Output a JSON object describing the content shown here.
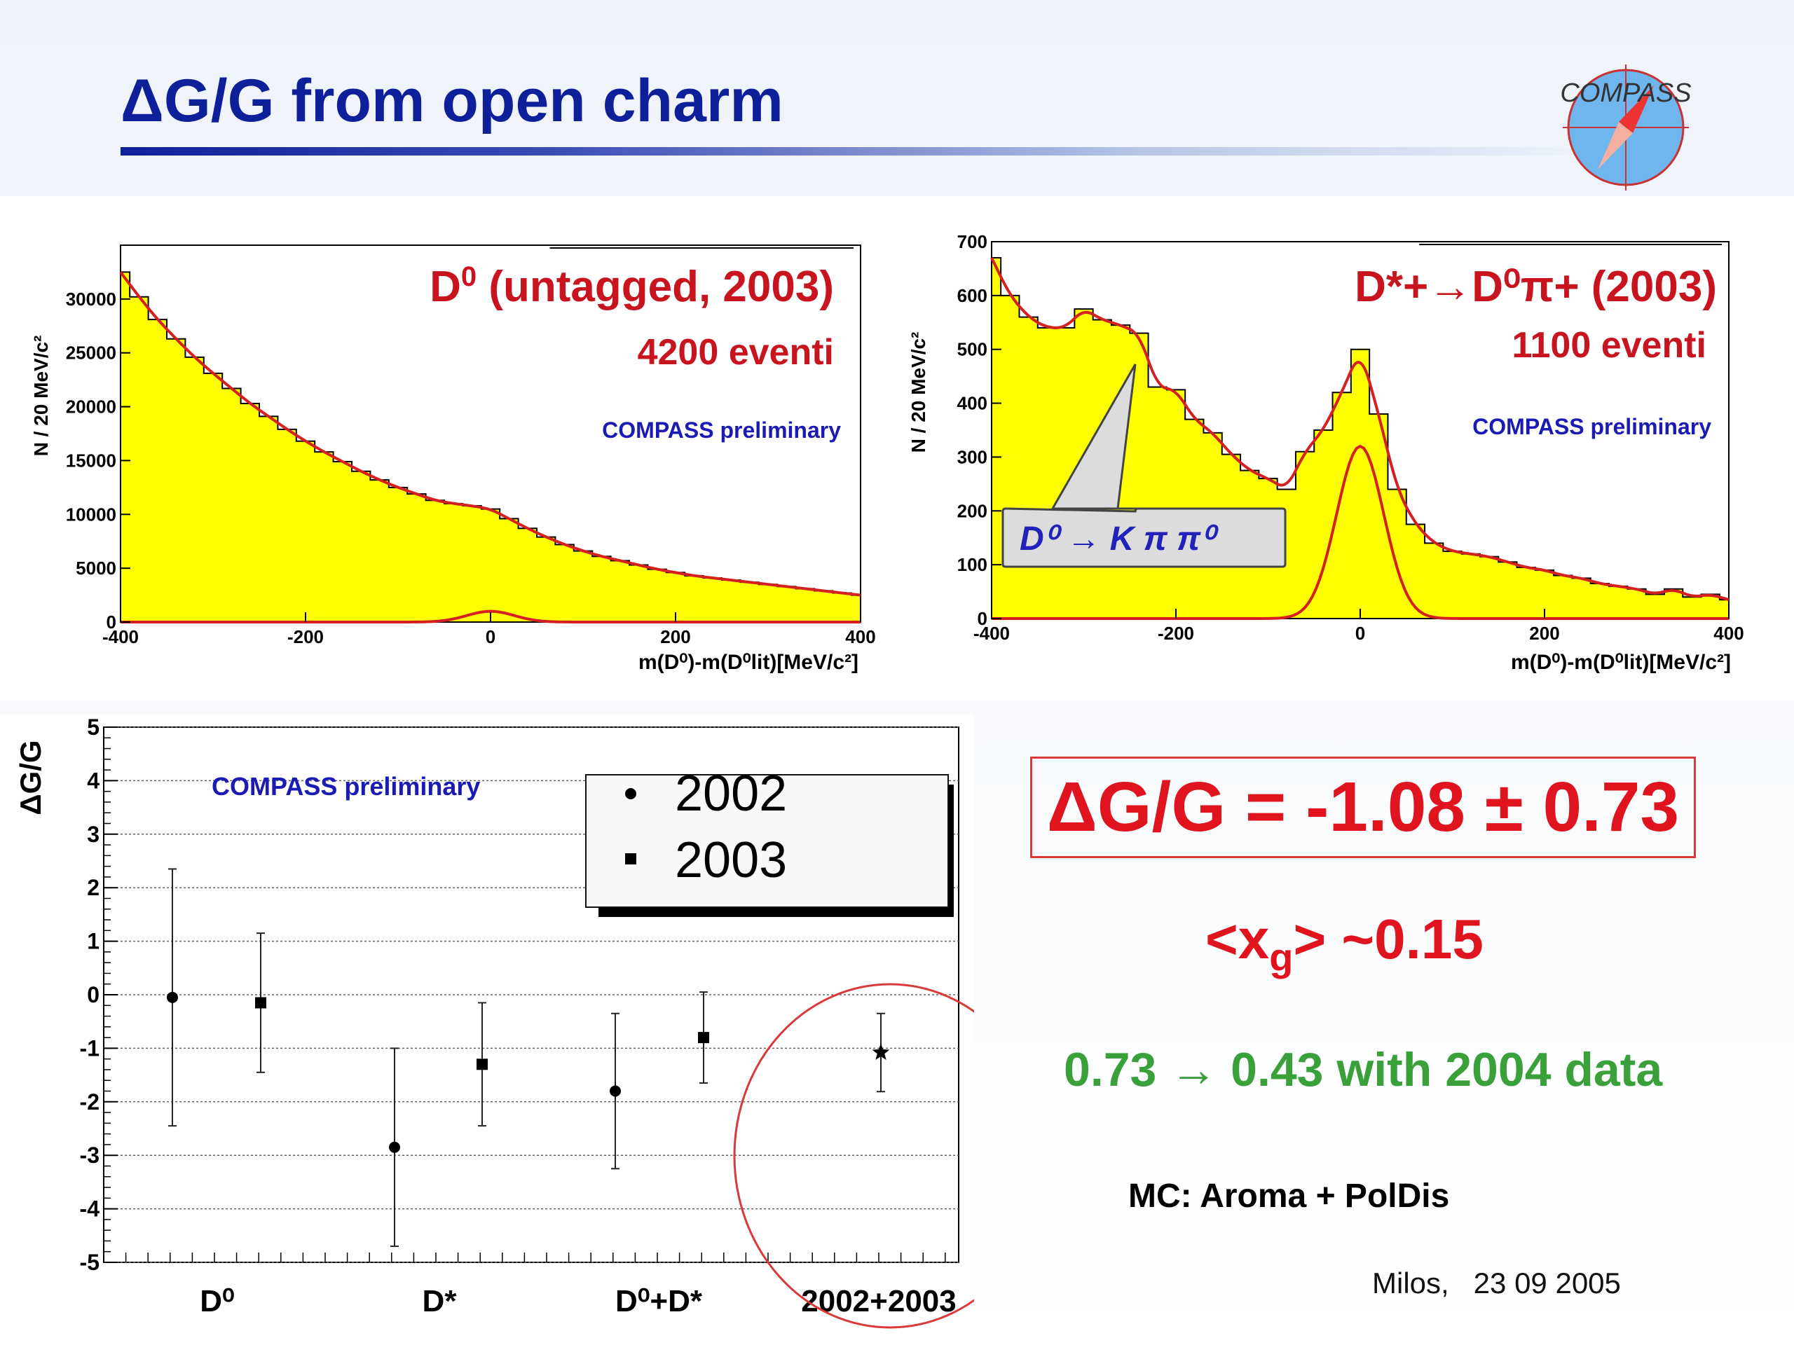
{
  "title": "ΔG/G from open charm",
  "logo": {
    "text": "COMPASS",
    "icon": "compass-logo-icon"
  },
  "panel_d0": {
    "label_main": "D",
    "label_sup": "0",
    "label_rest": " (untagged, 2003)",
    "events": "4200 eventi",
    "preliminary": "COMPASS preliminary",
    "ylabel": "N / 20 MeV/c²",
    "xlabel": "m(D⁰)-m(D⁰lit)[MeV/c²]"
  },
  "panel_dstar": {
    "label": "D*+→D⁰π+ (2003)",
    "events": "1100 eventi",
    "preliminary": "COMPASS preliminary",
    "callout": "D⁰ → K π π⁰",
    "ylabel": "N / 20 MeV/c²",
    "xlabel": "m(D⁰)-m(D⁰lit)[MeV/c²]"
  },
  "panel_dg": {
    "ylabel": "ΔG/G",
    "preliminary": "COMPASS preliminary",
    "legend": [
      {
        "label": "2002",
        "marker": "circle"
      },
      {
        "label": "2003",
        "marker": "square"
      }
    ]
  },
  "result": {
    "main": "ΔG/G = -1.08 ± 0.73",
    "xg_pre": "<x",
    "xg_sub": "g",
    "xg_post": "> ~0.15",
    "improvement": "0.73 → 0.43 with 2004 data",
    "mc": "MC: Aroma + PolDis"
  },
  "footer": "Milos,   23 09 2005",
  "colors": {
    "title": "#0e1f9a",
    "fill": "#ffff00",
    "fit": "#d42020",
    "result": "#e0141e",
    "green": "#3aa03a",
    "preliminary": "#1a1ab4"
  },
  "chart_data": [
    {
      "type": "area",
      "name": "d0-untagged-2003",
      "x": [
        -400,
        -380,
        -360,
        -340,
        -320,
        -300,
        -280,
        -260,
        -240,
        -220,
        -200,
        -180,
        -160,
        -140,
        -120,
        -100,
        -80,
        -60,
        -40,
        -20,
        0,
        20,
        40,
        60,
        80,
        100,
        120,
        140,
        160,
        180,
        200,
        220,
        240,
        260,
        280,
        300,
        320,
        340,
        360,
        380,
        400
      ],
      "values": [
        32500,
        30200,
        28100,
        26300,
        24600,
        23100,
        21700,
        20300,
        19100,
        17900,
        16800,
        15800,
        14900,
        14000,
        13200,
        12500,
        11900,
        11300,
        11000,
        10800,
        10500,
        9600,
        8700,
        7900,
        7200,
        6600,
        6100,
        5700,
        5300,
        4900,
        4600,
        4300,
        4100,
        3900,
        3700,
        3500,
        3300,
        3100,
        2900,
        2700,
        2500
      ],
      "signal_peak": 1000,
      "xlim": [
        -400,
        400
      ],
      "ylim": [
        0,
        35000
      ],
      "yticks": [
        0,
        5000,
        10000,
        15000,
        20000,
        25000,
        30000
      ],
      "xticks": [
        -400,
        -200,
        0,
        200,
        400
      ]
    },
    {
      "type": "area",
      "name": "dstar-2003",
      "x": [
        -400,
        -380,
        -360,
        -340,
        -320,
        -300,
        -280,
        -260,
        -240,
        -220,
        -200,
        -180,
        -160,
        -140,
        -120,
        -100,
        -80,
        -60,
        -40,
        -20,
        0,
        20,
        40,
        60,
        80,
        100,
        120,
        140,
        160,
        180,
        200,
        220,
        240,
        260,
        280,
        300,
        320,
        340,
        360,
        380,
        400
      ],
      "values": [
        670,
        600,
        560,
        540,
        540,
        575,
        555,
        545,
        530,
        430,
        425,
        370,
        345,
        305,
        275,
        260,
        240,
        310,
        350,
        420,
        500,
        380,
        240,
        175,
        140,
        125,
        120,
        115,
        105,
        95,
        90,
        80,
        75,
        65,
        60,
        55,
        45,
        55,
        40,
        45,
        35
      ],
      "signal_peak": 320,
      "xlim": [
        -400,
        400
      ],
      "ylim": [
        0,
        700
      ],
      "yticks": [
        0,
        100,
        200,
        300,
        400,
        500,
        600,
        700
      ],
      "xticks": [
        -400,
        -200,
        0,
        200,
        400
      ]
    },
    {
      "type": "scatter",
      "name": "delta-g-over-g",
      "categories": [
        "D⁰",
        "D*",
        "D⁰+D*",
        "2002+2003"
      ],
      "series": [
        {
          "name": "2002",
          "marker": "circle",
          "points": [
            {
              "category": "D⁰",
              "y": -0.05,
              "err": 2.4
            },
            {
              "category": "D*",
              "y": -2.85,
              "err": 1.85
            },
            {
              "category": "D⁰+D*",
              "y": -1.8,
              "err": 1.45
            }
          ]
        },
        {
          "name": "2003",
          "marker": "square",
          "points": [
            {
              "category": "D⁰",
              "y": -0.15,
              "err": 1.3
            },
            {
              "category": "D*",
              "y": -1.3,
              "err": 1.15
            },
            {
              "category": "D⁰+D*",
              "y": -0.8,
              "err": 0.85
            }
          ]
        },
        {
          "name": "2002+2003",
          "marker": "star",
          "points": [
            {
              "category": "2002+2003",
              "y": -1.08,
              "err": 0.73
            }
          ]
        }
      ],
      "ylim": [
        -5,
        5
      ],
      "yticks": [
        -5,
        -4,
        -3,
        -2,
        -1,
        0,
        1,
        2,
        3,
        4,
        5
      ]
    }
  ]
}
